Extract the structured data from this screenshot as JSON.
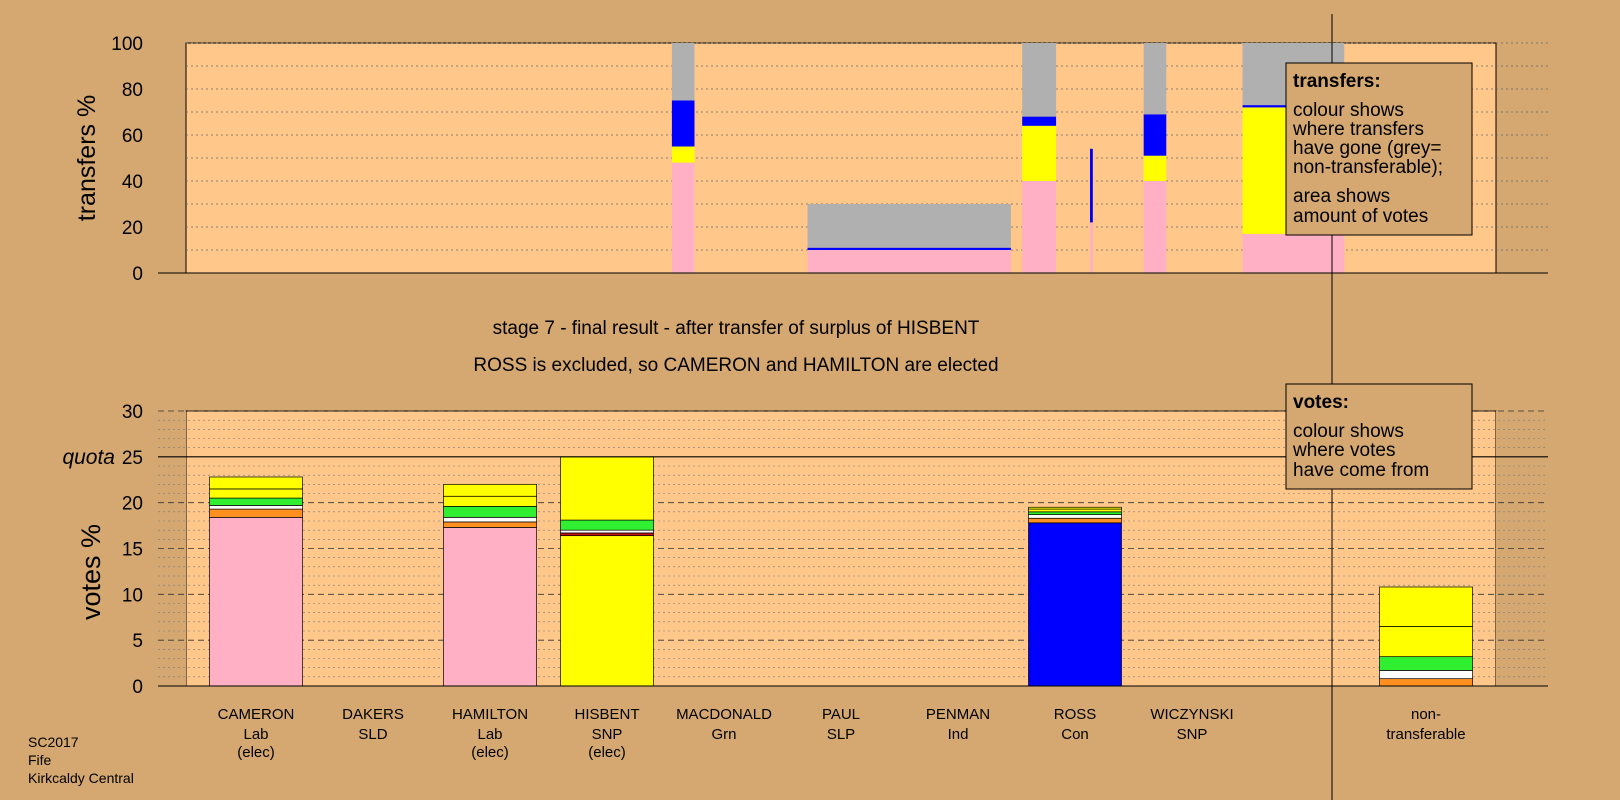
{
  "colors": {
    "background": "#d4a870",
    "plot_area": "#ffc88a",
    "Lab": "#ffb0c4",
    "SNP": "#ffff00",
    "Con": "#0000ff",
    "Grn": "#30ee30",
    "SLD": "#ff9020",
    "Ind": "#ffffff",
    "SLP": "#c01010",
    "nontransferable": "#b0b0b0"
  },
  "stage_text": {
    "line1": "stage 7 - final result - after transfer of surplus of HISBENT",
    "line2": "ROSS is excluded, so CAMERON and HAMILTON are elected"
  },
  "legend_transfers": {
    "title": "transfers:",
    "lines": [
      "colour shows",
      "where transfers",
      "have gone (grey=",
      "non-transferable);",
      "area shows",
      "amount of votes"
    ]
  },
  "legend_votes": {
    "title": "votes:",
    "lines": [
      "colour shows",
      "where votes",
      "have come from"
    ]
  },
  "footer": {
    "lines": [
      "SC2017",
      "Fife",
      "Kirkcaldy Central"
    ]
  },
  "chart_data": [
    {
      "type": "bar",
      "subtype": "stacked-transfers",
      "ylabel": "transfers %",
      "ylim": [
        0,
        100
      ],
      "yticks": [
        0,
        20,
        40,
        60,
        80,
        100
      ],
      "grid": "dotted",
      "columns": [
        {
          "x": 9.6,
          "width": 0.4,
          "segments": [
            {
              "party": "Lab",
              "value": 48
            },
            {
              "party": "SNP",
              "value": 7
            },
            {
              "party": "Con",
              "value": 20
            },
            {
              "party": "nontransferable",
              "value": 25
            }
          ]
        },
        {
          "x": 12.0,
          "width": 3.6,
          "segments": [
            {
              "party": "Lab",
              "value": 10
            },
            {
              "party": "Con",
              "value": 1
            },
            {
              "party": "nontransferable",
              "value": 19
            }
          ]
        },
        {
          "x": 15.8,
          "width": 0.6,
          "segments": [
            {
              "party": "Lab",
              "value": 40
            },
            {
              "party": "SNP",
              "value": 24
            },
            {
              "party": "Con",
              "value": 4
            },
            {
              "party": "nontransferable",
              "value": 32
            }
          ]
        },
        {
          "x": 17.0,
          "width": 0.05,
          "segments": [
            {
              "party": "Lab",
              "value": 22
            },
            {
              "party": "Con",
              "value": 32
            }
          ]
        },
        {
          "x": 17.95,
          "width": 0.4,
          "segments": [
            {
              "party": "Lab",
              "value": 40
            },
            {
              "party": "SNP",
              "value": 11
            },
            {
              "party": "Con",
              "value": 18
            },
            {
              "party": "nontransferable",
              "value": 31
            }
          ]
        },
        {
          "x": 19.7,
          "width": 1.8,
          "segments": [
            {
              "party": "Lab",
              "value": 17
            },
            {
              "party": "SNP",
              "value": 55
            },
            {
              "party": "Con",
              "value": 1
            },
            {
              "party": "nontransferable",
              "value": 27
            }
          ]
        }
      ]
    },
    {
      "type": "bar",
      "subtype": "stacked-votes",
      "ylabel": "votes %",
      "ylim": [
        0,
        30
      ],
      "yticks": [
        0,
        5,
        10,
        15,
        20,
        25,
        30
      ],
      "quota": 25,
      "quota_label": "quota",
      "grid": "dashed",
      "categories": [
        {
          "name": "CAMERON",
          "party": "Lab",
          "note": "(elec)"
        },
        {
          "name": "DAKERS",
          "party": "SLD",
          "note": ""
        },
        {
          "name": "HAMILTON",
          "party": "Lab",
          "note": "(elec)"
        },
        {
          "name": "HISBENT",
          "party": "SNP",
          "note": "(elec)"
        },
        {
          "name": "MACDONALD",
          "party": "Grn",
          "note": ""
        },
        {
          "name": "PAUL",
          "party": "SLP",
          "note": ""
        },
        {
          "name": "PENMAN",
          "party": "Ind",
          "note": ""
        },
        {
          "name": "ROSS",
          "party": "Con",
          "note": ""
        },
        {
          "name": "WICZYNSKI",
          "party": "SNP",
          "note": ""
        }
      ],
      "nontransferable_label": [
        "non-",
        "transferable"
      ],
      "stacks": [
        [
          {
            "party": "Lab",
            "value": 18.4
          },
          {
            "party": "SLD",
            "value": 0.9
          },
          {
            "party": "Ind",
            "value": 0.4
          },
          {
            "party": "Grn",
            "value": 0.8
          },
          {
            "party": "SNP",
            "value": 1.0
          },
          {
            "party": "SNP",
            "value": 1.3
          }
        ],
        [],
        [
          {
            "party": "Lab",
            "value": 17.3
          },
          {
            "party": "SLD",
            "value": 0.6
          },
          {
            "party": "Ind",
            "value": 0.5
          },
          {
            "party": "Grn",
            "value": 1.2
          },
          {
            "party": "SNP",
            "value": 1.1
          },
          {
            "party": "SNP",
            "value": 1.3
          }
        ],
        [
          {
            "party": "SNP",
            "value": 16.4
          },
          {
            "party": "SLP",
            "value": 0.3
          },
          {
            "party": "Ind",
            "value": 0.3
          },
          {
            "party": "Grn",
            "value": 1.1
          },
          {
            "party": "SNP",
            "value": 6.9
          }
        ],
        [],
        [],
        [],
        [
          {
            "party": "Con",
            "value": 17.8
          },
          {
            "party": "SLD",
            "value": 0.5
          },
          {
            "party": "Ind",
            "value": 0.4
          },
          {
            "party": "Grn",
            "value": 0.3
          },
          {
            "party": "SNP",
            "value": 0.3
          },
          {
            "party": "SNP",
            "value": 0.2
          }
        ],
        []
      ],
      "nontransferable_stack": [
        {
          "party": "SLD",
          "value": 0.8
        },
        {
          "party": "Ind",
          "value": 0.9
        },
        {
          "party": "Grn",
          "value": 1.5
        },
        {
          "party": "SNP",
          "value": 3.3
        },
        {
          "party": "SNP",
          "value": 4.3
        }
      ]
    }
  ]
}
